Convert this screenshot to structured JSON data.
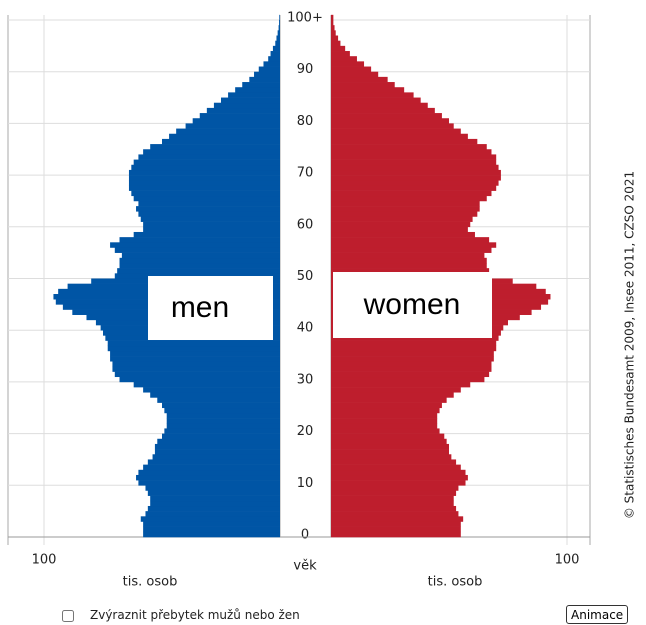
{
  "chart_data": {
    "type": "pyramid",
    "y_label": "věk",
    "x_label": "tis. osob",
    "credit": "© Statistisches Bundesamt 2009, Insee 2011, CZSO 2021",
    "xlim": [
      0,
      100
    ],
    "xticks": [
      100
    ],
    "ylim": [
      0,
      100
    ],
    "yticks": [
      0,
      10,
      20,
      30,
      40,
      50,
      60,
      70,
      80,
      90,
      {
        "value": 100,
        "label": "100+"
      }
    ],
    "grid": true,
    "series": [
      {
        "name": "men",
        "color": "#0055a5",
        "values": [
          58,
          58,
          58,
          59,
          57,
          56,
          55,
          55,
          56,
          57,
          60,
          61,
          60,
          58,
          56,
          54,
          53,
          53,
          52,
          50,
          49,
          48,
          48,
          48,
          49,
          50,
          52,
          55,
          58,
          62,
          68,
          70,
          71,
          71,
          72,
          72,
          73,
          73,
          74,
          75,
          76,
          78,
          82,
          88,
          92,
          95,
          96,
          94,
          90,
          80,
          70,
          69,
          68,
          68,
          67,
          70,
          72,
          68,
          62,
          58,
          58,
          59,
          60,
          61,
          60,
          62,
          63,
          64,
          64,
          64,
          64,
          63,
          62,
          60,
          58,
          55,
          50,
          47,
          44,
          40,
          37,
          34,
          31,
          28,
          25,
          22,
          19,
          16,
          13,
          11,
          9,
          7,
          5,
          4,
          3,
          2,
          1.5,
          1,
          0.6,
          0.4,
          0.3
        ]
      },
      {
        "name": "women",
        "color": "#be1e2d",
        "values": [
          55,
          55,
          55,
          56,
          54,
          53,
          52,
          52,
          53,
          54,
          57,
          58,
          57,
          55,
          53,
          51,
          50,
          50,
          49,
          48,
          46,
          45,
          45,
          45,
          46,
          47,
          49,
          52,
          55,
          59,
          65,
          67,
          68,
          68,
          69,
          69,
          70,
          70,
          71,
          72,
          73,
          75,
          80,
          85,
          89,
          92,
          93,
          91,
          87,
          77,
          68,
          67,
          66,
          66,
          65,
          68,
          70,
          67,
          61,
          58,
          59,
          60,
          62,
          63,
          63,
          66,
          68,
          70,
          71,
          72,
          72,
          71,
          70,
          70,
          68,
          66,
          62,
          58,
          55,
          52,
          50,
          47,
          44,
          41,
          38,
          35,
          31,
          27,
          24,
          20,
          17,
          14,
          11,
          8,
          6,
          4,
          3,
          2,
          1.5,
          1,
          1
        ]
      }
    ]
  },
  "controls": {
    "checkbox_label": "Zvýraznit přebytek mužů nebo žen",
    "button": "Animace"
  }
}
